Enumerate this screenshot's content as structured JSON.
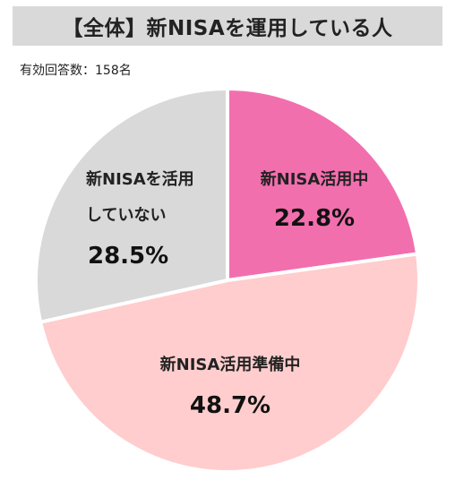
{
  "header": {
    "title": "【全体】新NISAを運用している人"
  },
  "note": "有効回答数：158名",
  "chart_data": {
    "type": "pie",
    "title": "【全体】新NISAを運用している人",
    "slices": [
      {
        "label": "新NISA活用中",
        "value": 22.8,
        "value_text": "22.8%",
        "color": "#f26fae"
      },
      {
        "label": "新NISA活用準備中",
        "value": 48.7,
        "value_text": "48.7%",
        "color": "#ffcdcd"
      },
      {
        "label": "新NISAを活用していない",
        "label_lines": [
          "新NISAを活用",
          "していない"
        ],
        "value": 28.5,
        "value_text": "28.5%",
        "color": "#d9d9d9"
      }
    ]
  }
}
